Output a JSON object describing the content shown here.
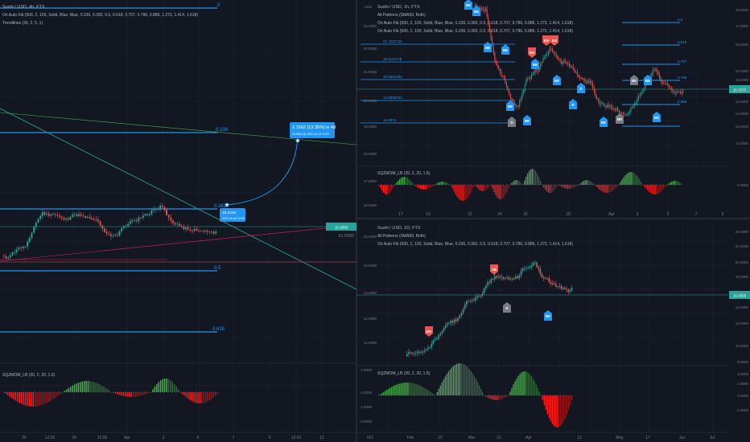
{
  "colors": {
    "bg": "#131722",
    "grid": "#1e222d",
    "separator": "#2a2e39",
    "text": "#b2b5be",
    "axis": "#787b86",
    "up": "#26a69a",
    "down": "#ef5350",
    "fib": "#2196f3",
    "price_tag": "#26a69a",
    "mom_green": "#4caf50",
    "mom_red": "#ff1c1c",
    "pattern_bear": "#ef5350",
    "pattern_bull": "#2196f3",
    "pattern_neutral": "#787b86"
  },
  "left_panel": {
    "title": "Sushi / USD, 4h, FTX",
    "indicator_1": "Ori Auto Fib (500, 2, 100, Solid, Blue, Blue, 0.236, 0.382, 0.5, 0.618, 0.707, 0.786, 0.886, 1.272, 1.414, 1.618)",
    "indicator_2": "Trendlines (30, 2, 5, 1)",
    "momentum_label": "SQZMOM_LB (20, 2, 20, 1.5)",
    "fib_labels": {
      "top": "0",
      "f236": "0.236",
      "f382": "0.382",
      "f5": "0.5",
      "f618": "0.618"
    },
    "price_axis": [
      "15.0000"
    ],
    "price_tag": "15.3555",
    "proj_box": {
      "line1": "2.1662 (13.35%) in 4d",
      "line2": "18.3910 @ 2021-04-13  12:00"
    },
    "start_box": {
      "line1": "16.2248",
      "line2": "2021-04-06  12:00"
    },
    "time_axis": [
      "26",
      "12:00",
      "29",
      "12:00",
      "Apr",
      "3",
      "5",
      "7",
      "9",
      "12:00",
      "12"
    ]
  },
  "right_top": {
    "title": "Sushi / USD, 1h, FTX",
    "indicator_1": "All Patterns (SMA50, Both)",
    "indicator_2": "Ori Auto Fib (500, 2, 100, Solid, Blue, Blue, 0.236, 0.382, 0.5, 0.618, 0.707, 0.786, 0.886, 1.272, 1.414, 1.618)",
    "indicator_3": "Ori Auto Fib (500, 2, 100, Solid, Blue, Blue, 0.236, 0.382, 0.5, 0.618, 0.707, 0.786, 0.886, 1.272, 1.414, 1.618)",
    "currency": "USD",
    "momentum_label": "SQZMOM_LB (20, 2, 20, 1.5)",
    "fib_left": [
      "21.7227132",
      "16.1110718",
      "15.5681364",
      "14.8808764",
      "14.0974"
    ],
    "fib_right": [
      "0.5",
      "0.618",
      "0.707",
      "0.786",
      "0.886"
    ],
    "price_axis_top": [
      "23.0000",
      "22.0000",
      "21.0000",
      "20.0000",
      "19.0000",
      "18.0000",
      "17.0000",
      "16.0000"
    ],
    "price_axis_right": [
      "18.0000",
      "17.0000",
      "16.5000",
      "16.0000",
      "15.5000",
      "15.0000",
      "14.5000",
      "14.0000",
      "13.5000",
      "13.0000"
    ],
    "price_tag": "15.3555",
    "mom_axis": [
      "0.0000"
    ],
    "time_axis": [
      "17",
      "19",
      "22",
      "24",
      "26",
      "29",
      "Apr",
      "3",
      "5",
      "7",
      "9"
    ],
    "pattern_labels": [
      "BE",
      "BE",
      "EB",
      "EB",
      "EB",
      "BE",
      "BE",
      "BE",
      "D",
      "BE",
      "BE",
      "BE",
      "D",
      "D",
      "BE",
      "BE",
      "BE",
      "BE",
      "BE"
    ]
  },
  "right_bottom": {
    "title": "Sushi / USD, 1D, FTX",
    "indicator_1": "All Patterns (SMA50, Both)",
    "indicator_2": "Ori Auto Fib (500, 2, 100, Solid, Blue, Blue, 0.236, 0.382, 0.5, 0.618, 0.707, 0.786, 0.886, 1.272, 1.414, 1.618)",
    "momentum_label": "SQZMOM_LB (20, 2, 20, 1.5)",
    "price_axis": [
      "24.0000",
      "22.0000",
      "20.0000",
      "18.0000",
      "16.0000",
      "14.0000",
      "12.0000",
      "10.0000",
      "8.0000"
    ],
    "mid_axis": [
      "15.0000",
      "14.0000",
      "13.0000",
      "12.0000",
      "11.0000"
    ],
    "price_tag": "15.3555",
    "mom_axis": [
      "4.0000",
      "2.0000",
      "0.0000",
      "-2.0000"
    ],
    "mom_axis_mid": [
      "2.0000",
      "0.0000",
      "-1.0000",
      "-2.0000"
    ],
    "time_axis": [
      "021",
      "Feb",
      "15",
      "Mar",
      "15",
      "Apr",
      "12",
      "May",
      "17",
      "Jun",
      "Jul"
    ],
    "pattern_labels": [
      "EB",
      "EB",
      "D",
      "BE"
    ]
  }
}
